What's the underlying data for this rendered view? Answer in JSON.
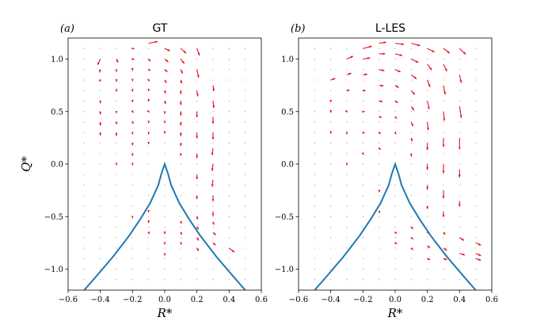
{
  "chart_data": [
    {
      "type": "quiver",
      "panel_tag": "(a)",
      "title": "GT",
      "xlabel": "R*",
      "ylabel": "Q*",
      "xlim": [
        -0.6,
        0.6
      ],
      "ylim": [
        -1.2,
        1.2
      ],
      "xticks": [
        "−0.6",
        "−0.4",
        "−0.2",
        "0.0",
        "0.2",
        "0.4",
        "0.6"
      ],
      "yticks": [
        "−1.0",
        "−0.5",
        "0.0",
        "0.5",
        "1.0"
      ],
      "arrow_color": "#e8121d",
      "curve_color": "#1f77b4",
      "curve": [
        [
          -0.5,
          -1.2
        ],
        [
          -0.42,
          -1.06
        ],
        [
          -0.32,
          -0.88
        ],
        [
          -0.22,
          -0.68
        ],
        [
          -0.15,
          -0.52
        ],
        [
          -0.09,
          -0.37
        ],
        [
          -0.04,
          -0.2
        ],
        [
          -0.02,
          -0.09
        ],
        [
          0.0,
          0.0
        ],
        [
          0.02,
          -0.09
        ],
        [
          0.04,
          -0.2
        ],
        [
          0.09,
          -0.37
        ],
        [
          0.15,
          -0.52
        ],
        [
          0.22,
          -0.68
        ],
        [
          0.32,
          -0.88
        ],
        [
          0.42,
          -1.06
        ],
        [
          0.5,
          -1.2
        ]
      ],
      "vectors": [
        [
          -0.4,
          1.0,
          -0.03,
          -0.1
        ],
        [
          -0.4,
          0.9,
          -0.01,
          -0.05
        ],
        [
          -0.4,
          0.8,
          -0.01,
          -0.03
        ],
        [
          -0.4,
          0.6,
          0.0,
          -0.04
        ],
        [
          -0.4,
          0.5,
          0.0,
          -0.05
        ],
        [
          -0.4,
          0.4,
          0.0,
          -0.06
        ],
        [
          -0.4,
          0.3,
          0.0,
          -0.05
        ],
        [
          -0.3,
          1.0,
          0.02,
          -0.06
        ],
        [
          -0.3,
          0.9,
          0.0,
          -0.04
        ],
        [
          -0.3,
          0.8,
          0.0,
          -0.03
        ],
        [
          -0.3,
          0.7,
          0.0,
          -0.02
        ],
        [
          -0.3,
          0.5,
          0.0,
          -0.03
        ],
        [
          -0.3,
          0.4,
          0.0,
          -0.04
        ],
        [
          -0.3,
          0.3,
          0.0,
          -0.06
        ],
        [
          -0.3,
          0.0,
          0.0,
          -0.02
        ],
        [
          -0.2,
          1.1,
          0.02,
          0.0
        ],
        [
          -0.2,
          1.0,
          0.02,
          -0.01
        ],
        [
          -0.2,
          0.9,
          0.0,
          -0.02
        ],
        [
          -0.2,
          0.8,
          0.0,
          -0.02
        ],
        [
          -0.2,
          0.7,
          0.0,
          -0.02
        ],
        [
          -0.2,
          0.6,
          0.0,
          -0.02
        ],
        [
          -0.2,
          0.5,
          0.01,
          -0.02
        ],
        [
          -0.2,
          0.4,
          0.01,
          -0.03
        ],
        [
          -0.2,
          0.3,
          0.0,
          -0.03
        ],
        [
          -0.2,
          0.2,
          0.0,
          -0.04
        ],
        [
          -0.2,
          0.1,
          0.0,
          -0.04
        ],
        [
          -0.2,
          0.0,
          0.0,
          -0.02
        ],
        [
          -0.2,
          -0.5,
          0.0,
          -0.03
        ],
        [
          -0.1,
          1.15,
          0.1,
          0.03
        ],
        [
          -0.1,
          1.0,
          0.02,
          -0.04
        ],
        [
          -0.1,
          0.9,
          0.02,
          -0.02
        ],
        [
          -0.1,
          0.8,
          0.01,
          -0.02
        ],
        [
          -0.1,
          0.7,
          0.0,
          -0.01
        ],
        [
          -0.1,
          0.6,
          0.0,
          -0.01
        ],
        [
          -0.1,
          0.5,
          0.01,
          -0.01
        ],
        [
          -0.1,
          0.4,
          0.0,
          -0.02
        ],
        [
          -0.1,
          0.3,
          0.0,
          -0.03
        ],
        [
          -0.1,
          0.2,
          0.0,
          -0.02
        ],
        [
          -0.1,
          -0.45,
          0.0,
          -0.02
        ],
        [
          -0.1,
          -0.55,
          0.0,
          -0.02
        ],
        [
          -0.1,
          -0.65,
          0.01,
          -0.03
        ],
        [
          0.0,
          1.1,
          0.06,
          -0.04
        ],
        [
          0.0,
          1.0,
          0.04,
          -0.05
        ],
        [
          0.0,
          0.9,
          0.03,
          -0.04
        ],
        [
          0.0,
          0.8,
          0.02,
          -0.05
        ],
        [
          0.0,
          0.7,
          0.01,
          -0.05
        ],
        [
          0.0,
          0.6,
          0.01,
          -0.05
        ],
        [
          0.0,
          0.5,
          0.0,
          -0.04
        ],
        [
          0.0,
          0.4,
          0.0,
          -0.02
        ],
        [
          0.0,
          0.3,
          0.0,
          -0.02
        ],
        [
          0.0,
          -0.65,
          0.0,
          -0.03
        ],
        [
          0.0,
          -0.75,
          0.0,
          -0.03
        ],
        [
          0.0,
          -0.85,
          0.0,
          -0.04
        ],
        [
          0.1,
          1.1,
          0.06,
          -0.08
        ],
        [
          0.1,
          1.0,
          0.04,
          -0.08
        ],
        [
          0.1,
          0.9,
          0.02,
          -0.07
        ],
        [
          0.1,
          0.8,
          0.01,
          -0.06
        ],
        [
          0.1,
          0.7,
          0.0,
          -0.06
        ],
        [
          0.1,
          0.6,
          0.0,
          -0.07
        ],
        [
          0.1,
          0.5,
          0.0,
          -0.07
        ],
        [
          0.1,
          0.4,
          0.0,
          -0.06
        ],
        [
          0.1,
          0.3,
          0.0,
          -0.06
        ],
        [
          0.1,
          0.2,
          0.0,
          -0.05
        ],
        [
          0.1,
          0.1,
          0.0,
          -0.04
        ],
        [
          0.1,
          -0.55,
          0.01,
          -0.03
        ],
        [
          0.1,
          -0.65,
          0.01,
          -0.04
        ],
        [
          0.1,
          -0.75,
          0.01,
          -0.03
        ],
        [
          0.2,
          1.1,
          0.03,
          -0.12
        ],
        [
          0.2,
          0.9,
          0.02,
          -0.14
        ],
        [
          0.2,
          0.7,
          0.01,
          -0.1
        ],
        [
          0.2,
          0.5,
          0.0,
          -0.1
        ],
        [
          0.2,
          0.3,
          0.0,
          -0.1
        ],
        [
          0.2,
          0.1,
          0.0,
          -0.08
        ],
        [
          0.2,
          -0.1,
          0.0,
          -0.08
        ],
        [
          0.2,
          -0.3,
          0.0,
          -0.06
        ],
        [
          0.2,
          -0.5,
          0.01,
          -0.05
        ],
        [
          0.2,
          -0.6,
          0.02,
          -0.04
        ],
        [
          0.2,
          -0.7,
          0.02,
          -0.05
        ],
        [
          0.2,
          -0.8,
          0.02,
          -0.05
        ],
        [
          0.3,
          0.75,
          0.01,
          -0.1
        ],
        [
          0.3,
          0.6,
          0.01,
          -0.12
        ],
        [
          0.3,
          0.45,
          0.0,
          -0.12
        ],
        [
          0.3,
          0.3,
          0.0,
          -0.12
        ],
        [
          0.3,
          0.15,
          -0.01,
          -0.12
        ],
        [
          0.3,
          0.0,
          -0.01,
          -0.12
        ],
        [
          0.3,
          -0.15,
          -0.01,
          -0.12
        ],
        [
          0.3,
          -0.3,
          0.0,
          -0.1
        ],
        [
          0.3,
          -0.45,
          0.0,
          -0.08
        ],
        [
          0.3,
          -0.55,
          0.01,
          -0.05
        ],
        [
          0.3,
          -0.65,
          0.03,
          -0.05
        ],
        [
          0.3,
          -0.75,
          0.03,
          -0.04
        ],
        [
          0.4,
          -0.8,
          0.06,
          -0.07
        ]
      ]
    },
    {
      "type": "quiver",
      "panel_tag": "(b)",
      "title": "L-LES",
      "xlabel": "R*",
      "ylabel": "Q*",
      "xlim": [
        -0.6,
        0.6
      ],
      "ylim": [
        -1.2,
        1.2
      ],
      "xticks": [
        "−0.6",
        "−0.4",
        "−0.2",
        "0.0",
        "0.2",
        "0.4",
        "0.6"
      ],
      "yticks": [
        "−1.0",
        "−0.5",
        "0.0",
        "0.5",
        "1.0"
      ],
      "arrow_color": "#e8121d",
      "curve_color": "#1f77b4",
      "curve": [
        [
          -0.5,
          -1.2
        ],
        [
          -0.42,
          -1.06
        ],
        [
          -0.32,
          -0.88
        ],
        [
          -0.22,
          -0.68
        ],
        [
          -0.15,
          -0.52
        ],
        [
          -0.09,
          -0.37
        ],
        [
          -0.04,
          -0.2
        ],
        [
          -0.02,
          -0.09
        ],
        [
          0.0,
          0.0
        ],
        [
          0.02,
          -0.09
        ],
        [
          0.04,
          -0.2
        ],
        [
          0.09,
          -0.37
        ],
        [
          0.15,
          -0.52
        ],
        [
          0.22,
          -0.68
        ],
        [
          0.32,
          -0.88
        ],
        [
          0.42,
          -1.06
        ],
        [
          0.5,
          -1.2
        ]
      ],
      "vectors": [
        [
          -0.4,
          0.8,
          0.05,
          0.03
        ],
        [
          -0.4,
          0.6,
          0.0,
          -0.02
        ],
        [
          -0.4,
          0.5,
          0.0,
          -0.02
        ],
        [
          -0.4,
          0.3,
          0.0,
          -0.02
        ],
        [
          -0.3,
          1.0,
          0.07,
          0.05
        ],
        [
          -0.3,
          0.85,
          0.05,
          0.03
        ],
        [
          -0.3,
          0.7,
          0.03,
          0.01
        ],
        [
          -0.3,
          0.5,
          0.01,
          -0.01
        ],
        [
          -0.3,
          0.3,
          0.0,
          -0.03
        ],
        [
          -0.3,
          0.0,
          0.0,
          -0.02
        ],
        [
          -0.2,
          1.1,
          0.1,
          0.04
        ],
        [
          -0.2,
          1.0,
          0.08,
          0.02
        ],
        [
          -0.2,
          0.85,
          0.05,
          0.01
        ],
        [
          -0.2,
          0.7,
          0.03,
          0.0
        ],
        [
          -0.2,
          0.5,
          0.02,
          0.0
        ],
        [
          -0.2,
          0.3,
          0.02,
          -0.01
        ],
        [
          -0.2,
          0.1,
          0.01,
          -0.02
        ],
        [
          -0.1,
          1.15,
          0.08,
          0.02
        ],
        [
          -0.1,
          1.05,
          0.07,
          0.0
        ],
        [
          -0.1,
          0.9,
          0.06,
          -0.02
        ],
        [
          -0.1,
          0.75,
          0.05,
          -0.01
        ],
        [
          -0.1,
          0.6,
          0.04,
          -0.01
        ],
        [
          -0.1,
          0.45,
          0.03,
          -0.01
        ],
        [
          -0.1,
          0.3,
          0.02,
          -0.02
        ],
        [
          -0.1,
          0.15,
          0.02,
          -0.02
        ],
        [
          -0.1,
          -0.25,
          0.01,
          -0.03
        ],
        [
          -0.1,
          -0.45,
          0.01,
          -0.03
        ],
        [
          0.0,
          1.15,
          0.1,
          -0.02
        ],
        [
          0.0,
          1.05,
          0.08,
          -0.03
        ],
        [
          0.0,
          0.9,
          0.06,
          -0.04
        ],
        [
          0.0,
          0.75,
          0.04,
          -0.04
        ],
        [
          0.0,
          0.6,
          0.03,
          -0.03
        ],
        [
          0.0,
          0.45,
          0.02,
          -0.03
        ],
        [
          0.0,
          0.3,
          0.01,
          -0.03
        ],
        [
          0.0,
          -0.65,
          0.02,
          -0.02
        ],
        [
          0.0,
          -0.75,
          0.02,
          -0.02
        ],
        [
          0.1,
          1.15,
          0.1,
          -0.04
        ],
        [
          0.1,
          1.0,
          0.08,
          -0.06
        ],
        [
          0.1,
          0.85,
          0.06,
          -0.07
        ],
        [
          0.1,
          0.7,
          0.04,
          -0.07
        ],
        [
          0.1,
          0.55,
          0.03,
          -0.07
        ],
        [
          0.1,
          0.4,
          0.02,
          -0.07
        ],
        [
          0.1,
          0.25,
          0.01,
          -0.06
        ],
        [
          0.1,
          0.1,
          0.0,
          -0.05
        ],
        [
          0.1,
          -0.6,
          0.02,
          -0.03
        ],
        [
          0.1,
          -0.7,
          0.02,
          -0.03
        ],
        [
          0.1,
          -0.8,
          0.02,
          -0.03
        ],
        [
          0.2,
          1.1,
          0.08,
          -0.06
        ],
        [
          0.2,
          0.95,
          0.05,
          -0.1
        ],
        [
          0.2,
          0.8,
          0.03,
          -0.12
        ],
        [
          0.2,
          0.6,
          0.02,
          -0.14
        ],
        [
          0.2,
          0.4,
          0.01,
          -0.14
        ],
        [
          0.2,
          0.2,
          0.0,
          -0.12
        ],
        [
          0.2,
          0.0,
          0.0,
          -0.1
        ],
        [
          0.2,
          -0.2,
          0.0,
          -0.08
        ],
        [
          0.2,
          -0.4,
          0.0,
          -0.05
        ],
        [
          0.2,
          -0.65,
          0.02,
          -0.02
        ],
        [
          0.2,
          -0.78,
          0.03,
          -0.03
        ],
        [
          0.2,
          -0.9,
          0.03,
          -0.02
        ],
        [
          0.3,
          1.1,
          0.07,
          -0.08
        ],
        [
          0.3,
          0.95,
          0.04,
          -0.12
        ],
        [
          0.3,
          0.75,
          0.02,
          -0.16
        ],
        [
          0.3,
          0.5,
          0.01,
          -0.16
        ],
        [
          0.3,
          0.25,
          0.0,
          -0.16
        ],
        [
          0.3,
          0.0,
          0.0,
          -0.16
        ],
        [
          0.3,
          -0.25,
          0.0,
          -0.14
        ],
        [
          0.3,
          -0.45,
          0.0,
          -0.1
        ],
        [
          0.3,
          -0.65,
          0.02,
          -0.04
        ],
        [
          0.3,
          -0.8,
          0.04,
          -0.04
        ],
        [
          0.3,
          -0.9,
          0.04,
          -0.02
        ],
        [
          0.4,
          1.1,
          0.07,
          -0.1
        ],
        [
          0.4,
          0.85,
          0.02,
          -0.14
        ],
        [
          0.4,
          0.55,
          0.02,
          -0.2
        ],
        [
          0.4,
          0.25,
          0.0,
          -0.2
        ],
        [
          0.4,
          -0.05,
          0.0,
          -0.14
        ],
        [
          0.4,
          -0.35,
          0.0,
          -0.1
        ],
        [
          0.4,
          -0.7,
          0.05,
          -0.05
        ],
        [
          0.4,
          -0.85,
          0.06,
          -0.03
        ],
        [
          0.5,
          -0.75,
          0.06,
          -0.04
        ],
        [
          0.5,
          -0.85,
          0.06,
          -0.04
        ],
        [
          0.5,
          -0.9,
          0.06,
          -0.03
        ]
      ]
    }
  ]
}
